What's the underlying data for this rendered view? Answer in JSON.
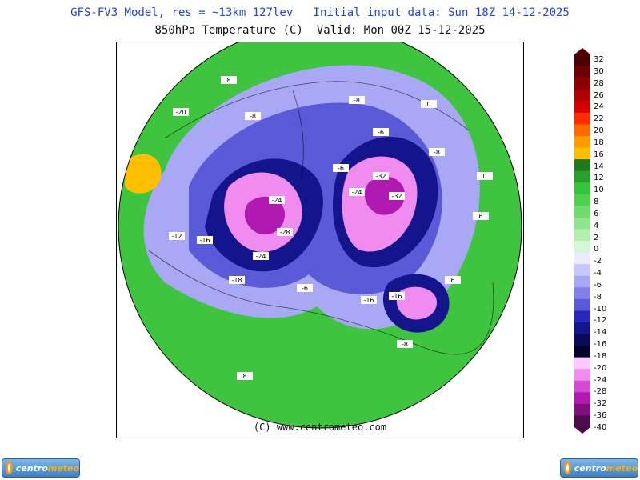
{
  "header": {
    "line1": "GFS-FV3 Model, res = ~13km 127lev   Initial input data: Sun 18Z 14-12-2025",
    "line2": "850hPa Temperature (C)  Valid: Mon 00Z 15-12-2025"
  },
  "map": {
    "copyright": "(C) www.centrometeo.com",
    "contour_labels": [
      "-32",
      "-32",
      "-24",
      "-24",
      "-24",
      "-16",
      "-16",
      "-16",
      "-8",
      "-8",
      "-8",
      "-8",
      "-6",
      "-6",
      "-6",
      "0",
      "0",
      "-12",
      "-18",
      "-20",
      "-28",
      "8",
      "6",
      "6",
      "8"
    ],
    "background_color": "#ffffff"
  },
  "colorbar": {
    "ticks": [
      "32",
      "30",
      "28",
      "26",
      "24",
      "22",
      "20",
      "18",
      "16",
      "14",
      "12",
      "10",
      "8",
      "6",
      "4",
      "2",
      "0",
      "-2",
      "-4",
      "-6",
      "-8",
      "-10",
      "-12",
      "-14",
      "-16",
      "-18",
      "-20",
      "-24",
      "-28",
      "-32",
      "-36",
      "-40"
    ],
    "colors": [
      "#4a0000",
      "#6a0000",
      "#8b0000",
      "#b00000",
      "#d40000",
      "#ff2a00",
      "#ff6a00",
      "#ff9a00",
      "#ffbf00",
      "#1f7a1f",
      "#27a12a",
      "#35c43a",
      "#4fd04f",
      "#70dc6f",
      "#8fe68e",
      "#b2f0b0",
      "#d6f7d4",
      "#ececff",
      "#c8c8ff",
      "#a8a8f4",
      "#8080e8",
      "#5a5ad8",
      "#2828b8",
      "#14148c",
      "#0a0a5a",
      "#000030",
      "#ffc8ff",
      "#f08cf0",
      "#d24cd2",
      "#b01ab0",
      "#80107f",
      "#4d0a4d"
    ]
  },
  "logos": {
    "left_alt": "centrometeo",
    "right_alt": "centrometeo",
    "word1": "centro",
    "word2": "meteo"
  }
}
